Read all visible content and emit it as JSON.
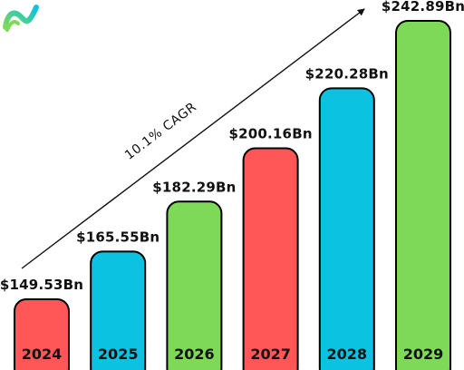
{
  "chart_data": {
    "type": "bar",
    "categories": [
      "2024",
      "2025",
      "2026",
      "2027",
      "2028",
      "2029"
    ],
    "values": [
      149.53,
      165.55,
      182.29,
      200.16,
      220.28,
      242.89
    ],
    "value_labels": [
      "$149.53Bn",
      "$165.55Bn",
      "$182.29Bn",
      "$200.16Bn",
      "$220.28Bn",
      "$242.89Bn"
    ],
    "bar_colors": [
      "#FF5757",
      "#0BC2E0",
      "#7ED957",
      "#FF5757",
      "#0BC2E0",
      "#7ED957"
    ],
    "annotation": "10.1% CAGR",
    "title": "",
    "xlabel": "",
    "ylabel": "",
    "grid": false
  },
  "logo": {
    "name": "brand-logo",
    "colors": [
      "#0BC2E0",
      "#7ED957"
    ]
  }
}
